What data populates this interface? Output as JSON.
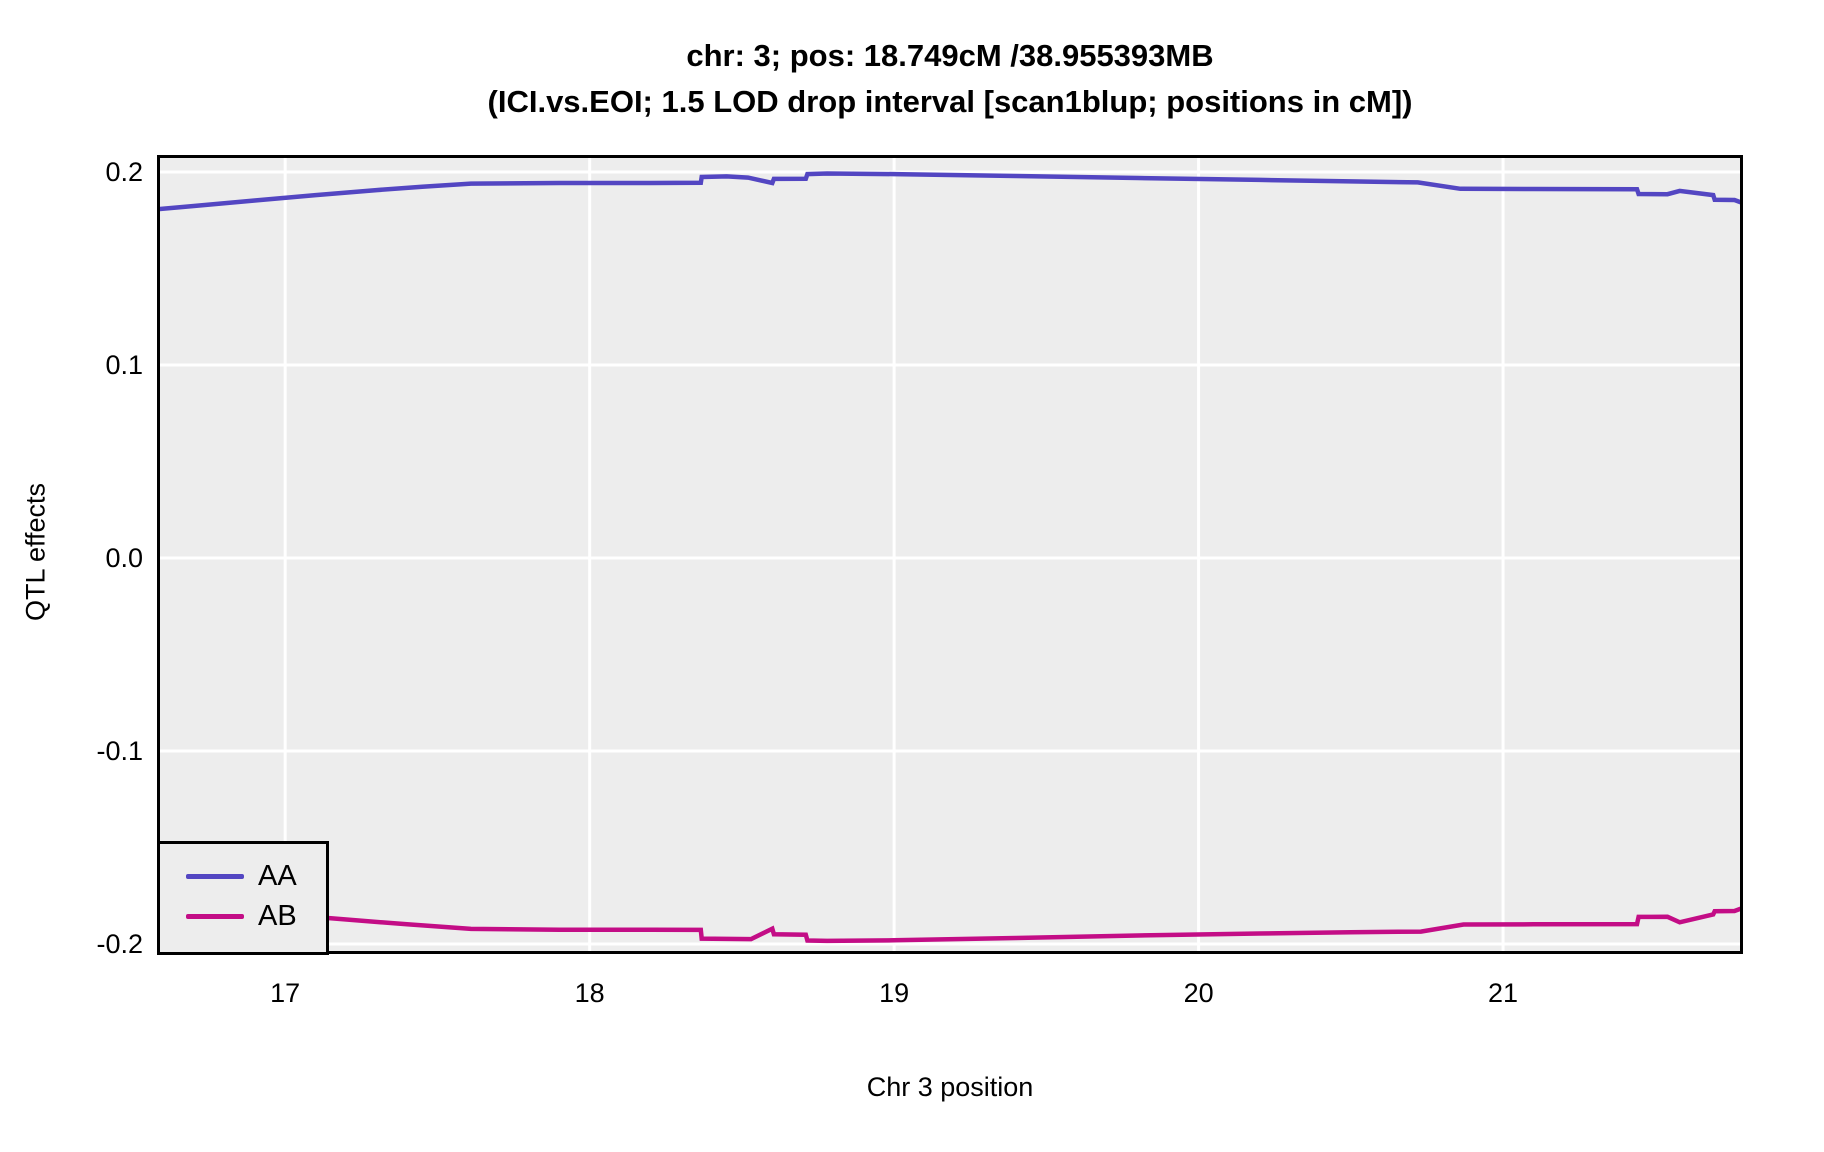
{
  "title": {
    "line1": "chr: 3; pos: 18.749cM /38.955393MB",
    "line2": "(ICI.vs.EOI; 1.5 LOD drop interval [scan1blup; positions in cM])"
  },
  "axes": {
    "x_label": "Chr 3 position",
    "y_label": "QTL effects",
    "x_tick_labels": [
      "17",
      "18",
      "19",
      "20",
      "21"
    ],
    "y_tick_labels": [
      "0.2",
      "0.1",
      "0.0",
      "-0.1",
      "-0.2"
    ]
  },
  "legend": {
    "items": [
      {
        "label": "AA",
        "color": "#5346C2"
      },
      {
        "label": "AB",
        "color": "#C30D86"
      }
    ]
  },
  "colors": {
    "panel_background": "#EDEDED",
    "gridline": "#FFFFFF",
    "panel_border": "#000000",
    "aa_line": "#5346C2",
    "ab_line": "#C30D86"
  },
  "chart_data": {
    "type": "line",
    "title": "chr: 3; pos: 18.749cM /38.955393MB",
    "subtitle": "(ICI.vs.EOI; 1.5 LOD drop interval [scan1blup; positions in cM])",
    "xlabel": "Chr 3 position",
    "ylabel": "QTL effects",
    "xlim": [
      16.579,
      21.788
    ],
    "ylim": [
      -0.2052,
      0.2088
    ],
    "x_ticks": [
      17,
      18,
      19,
      20,
      21
    ],
    "y_ticks": [
      0.2,
      0.1,
      0.0,
      -0.1,
      -0.2
    ],
    "grid": true,
    "legend_position": "bottom-left",
    "series": [
      {
        "name": "AA",
        "color": "#5346C2",
        "points": [
          [
            16.579,
            0.1807
          ],
          [
            16.7,
            0.1824
          ],
          [
            16.9,
            0.1852
          ],
          [
            17.1,
            0.188
          ],
          [
            17.3,
            0.1906
          ],
          [
            17.45,
            0.1924
          ],
          [
            17.61,
            0.194
          ],
          [
            17.9,
            0.1943
          ],
          [
            18.2,
            0.1943
          ],
          [
            18.365,
            0.1944
          ],
          [
            18.368,
            0.1974
          ],
          [
            18.45,
            0.1977
          ],
          [
            18.52,
            0.1971
          ],
          [
            18.6,
            0.1943
          ],
          [
            18.605,
            0.1964
          ],
          [
            18.71,
            0.1965
          ],
          [
            18.715,
            0.1989
          ],
          [
            18.78,
            0.1992
          ],
          [
            19.0,
            0.1989
          ],
          [
            19.4,
            0.1979
          ],
          [
            19.8,
            0.1969
          ],
          [
            20.2,
            0.1959
          ],
          [
            20.5,
            0.1951
          ],
          [
            20.72,
            0.1946
          ],
          [
            20.86,
            0.1913
          ],
          [
            21.1,
            0.1912
          ],
          [
            21.44,
            0.1911
          ],
          [
            21.445,
            0.1886
          ],
          [
            21.54,
            0.1885
          ],
          [
            21.58,
            0.1902
          ],
          [
            21.69,
            0.188
          ],
          [
            21.695,
            0.1856
          ],
          [
            21.76,
            0.1855
          ],
          [
            21.788,
            0.1838
          ]
        ]
      },
      {
        "name": "AB",
        "color": "#C30D86",
        "points": [
          [
            16.579,
            -0.18
          ],
          [
            16.8,
            -0.1826
          ],
          [
            17.0,
            -0.185
          ],
          [
            17.15,
            -0.1867
          ],
          [
            17.4,
            -0.1898
          ],
          [
            17.61,
            -0.1922
          ],
          [
            17.9,
            -0.1926
          ],
          [
            18.2,
            -0.1926
          ],
          [
            18.365,
            -0.1927
          ],
          [
            18.368,
            -0.1972
          ],
          [
            18.53,
            -0.1975
          ],
          [
            18.6,
            -0.1921
          ],
          [
            18.605,
            -0.195
          ],
          [
            18.71,
            -0.1952
          ],
          [
            18.715,
            -0.1982
          ],
          [
            18.78,
            -0.1984
          ],
          [
            19.0,
            -0.1981
          ],
          [
            19.4,
            -0.1969
          ],
          [
            19.8,
            -0.1956
          ],
          [
            20.2,
            -0.1946
          ],
          [
            20.5,
            -0.1939
          ],
          [
            20.73,
            -0.1936
          ],
          [
            20.87,
            -0.1899
          ],
          [
            21.1,
            -0.1898
          ],
          [
            21.44,
            -0.1897
          ],
          [
            21.445,
            -0.186
          ],
          [
            21.54,
            -0.1859
          ],
          [
            21.58,
            -0.1888
          ],
          [
            21.69,
            -0.1847
          ],
          [
            21.695,
            -0.183
          ],
          [
            21.76,
            -0.1829
          ],
          [
            21.788,
            -0.1813
          ]
        ]
      }
    ]
  }
}
